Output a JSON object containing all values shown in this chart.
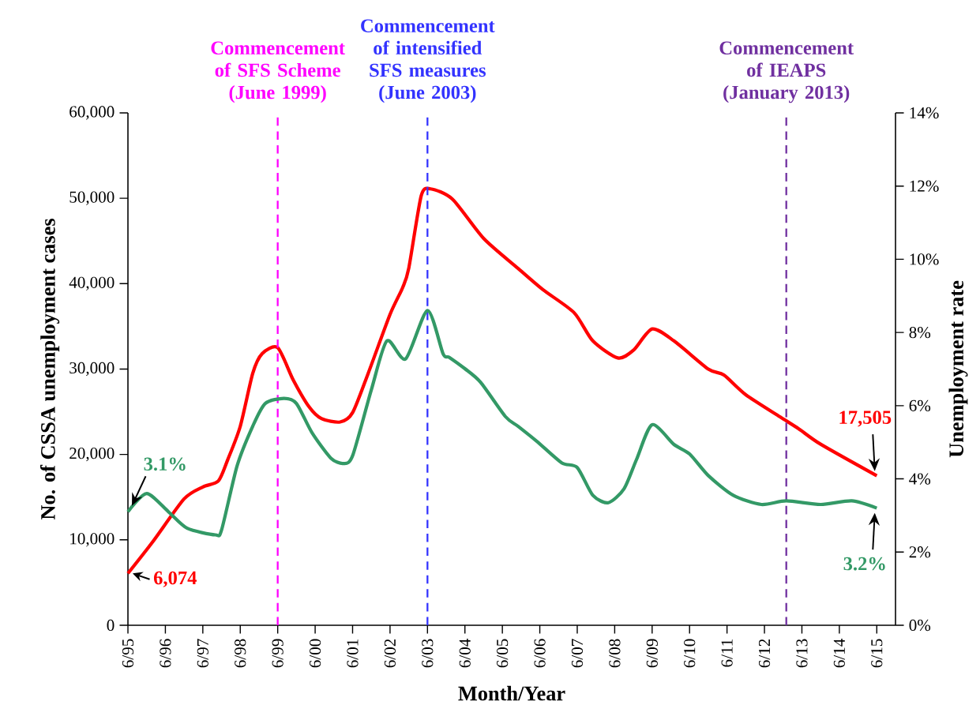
{
  "chart_data": {
    "type": "line",
    "xlabel": "Month/Year",
    "ylabel": "No. of CSSA unemployment cases",
    "y2label": "Unemployment rate",
    "xlim": [
      "1995-06",
      "2015-12"
    ],
    "xticks": [
      {
        "value": "1995-06",
        "label": "6/95"
      },
      {
        "value": "1996-06",
        "label": "6/96"
      },
      {
        "value": "1997-06",
        "label": "6/97"
      },
      {
        "value": "1998-06",
        "label": "6/98"
      },
      {
        "value": "1999-06",
        "label": "6/99"
      },
      {
        "value": "2000-06",
        "label": "6/00"
      },
      {
        "value": "2001-06",
        "label": "6/01"
      },
      {
        "value": "2002-06",
        "label": "6/02"
      },
      {
        "value": "2003-06",
        "label": "6/03"
      },
      {
        "value": "2004-06",
        "label": "6/04"
      },
      {
        "value": "2005-06",
        "label": "6/05"
      },
      {
        "value": "2006-06",
        "label": "6/06"
      },
      {
        "value": "2007-06",
        "label": "6/07"
      },
      {
        "value": "2008-06",
        "label": "6/08"
      },
      {
        "value": "2009-06",
        "label": "6/09"
      },
      {
        "value": "2010-06",
        "label": "6/10"
      },
      {
        "value": "2011-06",
        "label": "6/11"
      },
      {
        "value": "2012-06",
        "label": "6/12"
      },
      {
        "value": "2013-06",
        "label": "6/13"
      },
      {
        "value": "2014-06",
        "label": "6/14"
      },
      {
        "value": "2015-06",
        "label": "6/15"
      }
    ],
    "ylim": [
      0,
      60000
    ],
    "yticks": [
      0,
      {
        "value": 10000,
        "label": "10,000"
      },
      {
        "value": 20000,
        "label": "20,000"
      },
      {
        "value": 30000,
        "label": "30,000"
      },
      {
        "value": 40000,
        "label": "40,000"
      },
      {
        "value": 50000,
        "label": "50,000"
      },
      {
        "value": 60000,
        "label": "60,000"
      }
    ],
    "y2lim": [
      0,
      14
    ],
    "y2ticks": [
      {
        "value": 0,
        "label": "0%"
      },
      {
        "value": 2,
        "label": "2%"
      },
      {
        "value": 4,
        "label": "4%"
      },
      {
        "value": 6,
        "label": "6%"
      },
      {
        "value": 8,
        "label": "8%"
      },
      {
        "value": 10,
        "label": "10%"
      },
      {
        "value": 12,
        "label": "12%"
      },
      {
        "value": 14,
        "label": "14%"
      }
    ],
    "series": [
      {
        "color": "#ff0000",
        "x": [
          "1995-06",
          "1996-02",
          "1996-12",
          "1997-06",
          "1997-11",
          "1998-02",
          "1998-06",
          "1998-10",
          "1999-01",
          "1999-06",
          "1999-11",
          "2000-04",
          "2000-08",
          "2001-02",
          "2001-06",
          "2001-11",
          "2002-06",
          "2002-10",
          "2002-12",
          "2003-04",
          "2003-07",
          "2004-02",
          "2004-12",
          "2005-11",
          "2006-07",
          "2007-05",
          "2007-11",
          "2008-07",
          "2008-12",
          "2009-06",
          "2010-01",
          "2010-12",
          "2011-05",
          "2011-12",
          "2012-11",
          "2013-05",
          "2013-12",
          "2015-06"
        ],
        "values": [
          6074,
          9800,
          14800,
          16200,
          16900,
          19400,
          23300,
          29500,
          31800,
          32500,
          28700,
          25600,
          24200,
          23800,
          24900,
          29500,
          36400,
          39500,
          41800,
          50300,
          51100,
          49900,
          45300,
          41800,
          39300,
          36600,
          33300,
          31300,
          32200,
          34700,
          33300,
          30000,
          29300,
          27000,
          24400,
          23000,
          21200,
          17505
        ],
        "value_labels": [
          "6,074",
          null,
          null,
          null,
          null,
          null,
          null,
          null,
          null,
          null,
          null,
          null,
          null,
          null,
          null,
          null,
          null,
          null,
          null,
          null,
          null,
          null,
          null,
          null,
          null,
          null,
          null,
          null,
          null,
          null,
          null,
          null,
          null,
          null,
          null,
          null,
          null,
          "17,505"
        ]
      },
      {
        "color": "#339966",
        "axis": "y2",
        "x": [
          "1995-06",
          "1995-12",
          "1996-07",
          "1997-01",
          "1997-10",
          "1997-12",
          "1998-05",
          "1998-10",
          "1999-02",
          "1999-08",
          "1999-12",
          "2000-05",
          "2000-11",
          "2001-03",
          "2001-06",
          "2001-12",
          "2002-05",
          "2002-11",
          "2003-06",
          "2003-11",
          "2004-01",
          "2004-06",
          "2004-11",
          "2005-07",
          "2005-11",
          "2006-05",
          "2007-01",
          "2007-06",
          "2007-11",
          "2008-04",
          "2008-09",
          "2009-01",
          "2009-06",
          "2010-01",
          "2010-06",
          "2010-12",
          "2011-08",
          "2012-05",
          "2013-01",
          "2013-12",
          "2014-10",
          "2015-06"
        ],
        "values": [
          3.1,
          3.6,
          3.1,
          2.65,
          2.47,
          2.6,
          4.36,
          5.44,
          6.06,
          6.2,
          6.06,
          5.26,
          4.57,
          4.42,
          4.63,
          6.43,
          7.77,
          7.28,
          8.6,
          7.42,
          7.32,
          7.01,
          6.64,
          5.7,
          5.44,
          5.03,
          4.44,
          4.31,
          3.55,
          3.35,
          3.73,
          4.53,
          5.48,
          4.94,
          4.68,
          4.09,
          3.55,
          3.3,
          3.4,
          3.3,
          3.4,
          3.2
        ],
        "value_labels": [
          "3.1%",
          null,
          null,
          null,
          null,
          null,
          null,
          null,
          null,
          null,
          null,
          null,
          null,
          null,
          null,
          null,
          null,
          null,
          null,
          null,
          null,
          null,
          null,
          null,
          null,
          null,
          null,
          null,
          null,
          null,
          null,
          null,
          null,
          null,
          null,
          null,
          null,
          null,
          null,
          null,
          null,
          "3.2%"
        ]
      }
    ],
    "ref_lines": [
      {
        "axis": "x",
        "value": "1999-06",
        "label": "Commencement of SFS Scheme (June 1999)",
        "color": "#ff00ff",
        "line_style": "dashed"
      },
      {
        "axis": "x",
        "value": "2003-06",
        "label": "Commencement of intensified SFS measures (June 2003)",
        "color": "#3333ff",
        "line_style": "dashed"
      },
      {
        "axis": "x",
        "value": "2013-01",
        "label": "Commencement of IEAPS (January 2013)",
        "color": "#7030a0",
        "line_style": "dashed"
      }
    ]
  }
}
